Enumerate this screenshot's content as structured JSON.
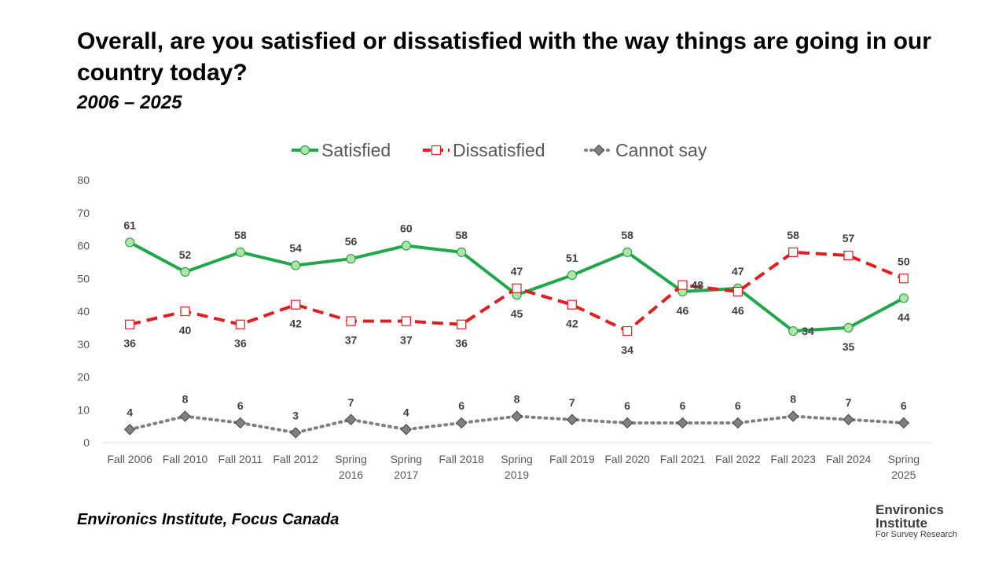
{
  "title": "Overall, are you satisfied or dissatisfied with the way things are going in our country today?",
  "subtitle": "2006 – 2025",
  "source": "Environics Institute, Focus Canada",
  "logo": {
    "line1": "Environics",
    "line2": "Institute",
    "line3": "For Survey Research"
  },
  "chart_data": {
    "type": "line",
    "title": "Overall, are you satisfied or dissatisfied with the way things are going in our country today?",
    "subtitle": "2006 – 2025",
    "categories": [
      [
        "Fall 2006"
      ],
      [
        "Fall 2010"
      ],
      [
        "Fall 2011"
      ],
      [
        "Fall 2012"
      ],
      [
        "Spring",
        "2016"
      ],
      [
        "Spring",
        "2017"
      ],
      [
        "Fall 2018"
      ],
      [
        "Spring",
        "2019"
      ],
      [
        "Fall 2019"
      ],
      [
        "Fall 2020"
      ],
      [
        "Fall 2021"
      ],
      [
        "Fall 2022"
      ],
      [
        "Fall 2023"
      ],
      [
        "Fall 2024"
      ],
      [
        "Spring",
        "2025"
      ]
    ],
    "ylim": [
      0,
      80
    ],
    "yticks": [
      0,
      10,
      20,
      30,
      40,
      50,
      60,
      70,
      80
    ],
    "grid": false,
    "legend_position": "top-center",
    "series": [
      {
        "name": "Satisfied",
        "values": [
          61,
          52,
          58,
          54,
          56,
          60,
          58,
          45,
          51,
          58,
          46,
          47,
          34,
          35,
          44
        ],
        "label_pos": [
          "above",
          "above",
          "above",
          "above",
          "above",
          "above",
          "above",
          "below",
          "above",
          "above",
          "below",
          "above",
          "right",
          "below",
          "below"
        ],
        "color": "#1FA84A",
        "marker_fill": "#B5E3A5",
        "marker": "circle",
        "line_style": "solid"
      },
      {
        "name": "Dissatisfied",
        "values": [
          36,
          40,
          36,
          42,
          37,
          37,
          36,
          47,
          42,
          34,
          48,
          46,
          58,
          57,
          50
        ],
        "label_pos": [
          "below",
          "below",
          "below",
          "below",
          "below",
          "below",
          "below",
          "above",
          "below",
          "below",
          "right",
          "below",
          "above",
          "above",
          "above"
        ],
        "color": "#E02020",
        "marker_fill": "#FFFFFF",
        "marker": "square",
        "line_style": "dashed"
      },
      {
        "name": "Cannot say",
        "values": [
          4,
          8,
          6,
          3,
          7,
          4,
          6,
          8,
          7,
          6,
          6,
          6,
          8,
          7,
          6
        ],
        "label_pos": [
          "above",
          "above",
          "above",
          "above",
          "above",
          "above",
          "above",
          "above",
          "above",
          "above",
          "above",
          "above",
          "above",
          "above",
          "above"
        ],
        "color": "#808080",
        "marker_fill": "#808080",
        "marker": "diamond",
        "line_style": "dotted"
      }
    ]
  }
}
